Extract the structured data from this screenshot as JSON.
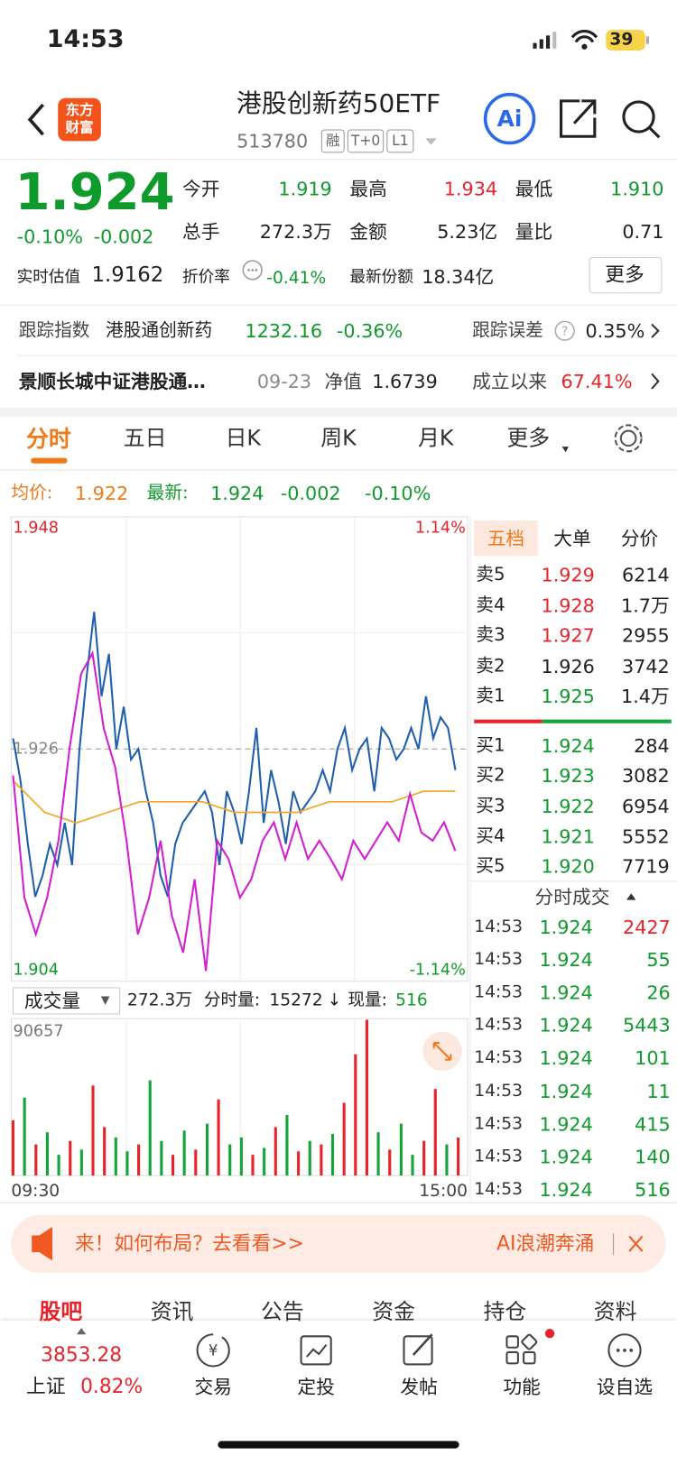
{
  "status_bar": {
    "time": "14:53",
    "battery": "39"
  },
  "header": {
    "logo": [
      "东方",
      "财富"
    ],
    "title": "港股创新药50ETF",
    "code": "513780",
    "tags": [
      "融",
      "T+0",
      "L1"
    ],
    "ai": "Ai"
  },
  "quote": {
    "price": "1.924",
    "change_pct": "-0.10%",
    "change": "-0.002",
    "stats": [
      {
        "label": "今开",
        "value": "1.919"
      },
      {
        "label": "最高",
        "value": "1.934"
      },
      {
        "label": "最低",
        "value": "1.910"
      },
      {
        "label": "总手",
        "value": "272.3万"
      },
      {
        "label": "金额",
        "value": "5.23亿"
      },
      {
        "label": "量比",
        "value": "0.71"
      }
    ],
    "estimate_label": "实时估值",
    "estimate": "1.9162",
    "discount_label": "折价率",
    "discount": "-0.41%",
    "shares_label": "最新份额",
    "shares": "18.34亿",
    "more": "更多"
  },
  "tracking": {
    "label": "跟踪指数",
    "index": "港股通创新药",
    "value": "1232.16",
    "change": "-0.36%",
    "error_label": "跟踪误差",
    "error": "0.35%"
  },
  "fund": {
    "name": "景顺长城中证港股通…",
    "date": "09-23",
    "nav_label": "净值",
    "nav": "1.6739",
    "since_label": "成立以来",
    "since": "67.41%"
  },
  "tabs": [
    "分时",
    "五日",
    "日K",
    "周K",
    "月K",
    "更多"
  ],
  "legend": {
    "avg_label": "均价:",
    "avg": "1.922",
    "latest_label": "最新:",
    "latest": "1.924",
    "change": "-0.002",
    "change_pct": "-0.10%"
  },
  "chart_data": [
    {
      "type": "line",
      "ylim": [
        1.904,
        1.948
      ],
      "yticks": [
        1.904,
        1.926,
        1.948
      ],
      "y2lim": [
        -1.14,
        1.14
      ],
      "y2ticks": [
        {
          "value": -1.14,
          "label": "-1.14%"
        },
        {
          "value": 1.14,
          "label": "1.14%"
        }
      ],
      "grid": true,
      "series": [
        {
          "color": "#1f5fae",
          "values": [
            1.927,
            1.923,
            1.917,
            1.912,
            1.914,
            1.917,
            1.915,
            1.919,
            1.915,
            1.926,
            1.933,
            1.939,
            1.931,
            1.935,
            1.926,
            1.93,
            1.925,
            1.926,
            1.922,
            1.919,
            1.914,
            1.912,
            1.917,
            1.919,
            1.92,
            1.921,
            1.922,
            1.92,
            1.915,
            1.922,
            1.92,
            1.917,
            1.922,
            1.928,
            1.919,
            1.924,
            1.921,
            1.917,
            1.922,
            1.92,
            1.921,
            1.922,
            1.924,
            1.922,
            1.926,
            1.928,
            1.924,
            1.926,
            1.927,
            1.922,
            1.928,
            1.927,
            1.925,
            1.926,
            1.928,
            1.926,
            1.931,
            1.927,
            1.929,
            1.928,
            1.924
          ]
        },
        {
          "color": "#f5a623",
          "values": [
            1.923,
            1.92,
            1.919,
            1.92,
            1.921,
            1.921,
            1.921,
            1.92,
            1.92,
            1.92,
            1.921,
            1.921,
            1.921,
            1.922,
            1.922
          ]
        },
        {
          "color": "#d21fd2",
          "axis": "y2",
          "values": [
            -0.13,
            -0.73,
            -0.91,
            -0.73,
            -0.45,
            0.01,
            0.37,
            0.47,
            0.1,
            -0.09,
            -0.45,
            -0.91,
            -0.73,
            -0.45,
            -0.82,
            -1.0,
            -0.64,
            -1.09,
            -0.45,
            -0.54,
            -0.73,
            -0.64,
            -0.45,
            -0.36,
            -0.54,
            -0.36,
            -0.54,
            -0.45,
            -0.54,
            -0.64,
            -0.45,
            -0.54,
            -0.45,
            -0.36,
            -0.45,
            -0.22,
            -0.41,
            -0.45,
            -0.36,
            -0.5
          ]
        }
      ],
      "time_labels": [
        "09:30",
        "15:00"
      ]
    },
    {
      "type": "bar",
      "selector": "成交量",
      "total": "272.3万",
      "period_label": "分时量:",
      "period": "15272",
      "arrow": "↓",
      "current_label": "现量:",
      "current": "516",
      "ylim": [
        0,
        90657
      ],
      "yticks": [
        90657
      ],
      "values": [
        32000,
        45000,
        18000,
        25000,
        12000,
        20000,
        15000,
        52000,
        28000,
        22000,
        14000,
        18000,
        55000,
        20000,
        12000,
        26000,
        15000,
        30000,
        44000,
        18000,
        22000,
        12000,
        16000,
        28000,
        35000,
        14000,
        20000,
        18000,
        24000,
        42000,
        70000,
        90000,
        25000,
        15000,
        30000,
        12000,
        20000,
        50000,
        18000,
        22000
      ],
      "colors": [
        "#e8242b",
        "#13a538",
        "#e8242b",
        "#13a538",
        "#13a538",
        "#e8242b",
        "#13a538",
        "#e8242b",
        "#e8242b",
        "#13a538",
        "#13a538",
        "#e8242b",
        "#13a538",
        "#13a538",
        "#e8242b",
        "#13a538",
        "#e8242b",
        "#13a538",
        "#e8242b",
        "#13a538",
        "#13a538",
        "#e8242b",
        "#13a538",
        "#e8242b",
        "#13a538",
        "#e8242b",
        "#13a538",
        "#e8242b",
        "#13a538",
        "#e8242b",
        "#e8242b",
        "#e8242b",
        "#13a538",
        "#e8242b",
        "#13a538",
        "#13a538",
        "#e8242b",
        "#e8242b",
        "#13a538",
        "#e8242b"
      ]
    }
  ],
  "order_book": {
    "tabs": [
      "五档",
      "大单",
      "分价"
    ],
    "asks": [
      {
        "label": "卖5",
        "price": "1.929",
        "volume": "6214"
      },
      {
        "label": "卖4",
        "price": "1.928",
        "volume": "1.7万"
      },
      {
        "label": "卖3",
        "price": "1.927",
        "volume": "2955"
      },
      {
        "label": "卖2",
        "price": "1.926",
        "volume": "3742"
      },
      {
        "label": "卖1",
        "price": "1.925",
        "volume": "1.4万"
      }
    ],
    "bids": [
      {
        "label": "买1",
        "price": "1.924",
        "volume": "284"
      },
      {
        "label": "买2",
        "price": "1.923",
        "volume": "3082"
      },
      {
        "label": "买3",
        "price": "1.922",
        "volume": "6954"
      },
      {
        "label": "买4",
        "price": "1.921",
        "volume": "5552"
      },
      {
        "label": "买5",
        "price": "1.920",
        "volume": "7719"
      }
    ],
    "trades_title": "分时成交",
    "trades": [
      {
        "time": "14:53",
        "price": "1.924",
        "volume": "2427"
      },
      {
        "time": "14:53",
        "price": "1.924",
        "volume": "55"
      },
      {
        "time": "14:53",
        "price": "1.924",
        "volume": "26"
      },
      {
        "time": "14:53",
        "price": "1.924",
        "volume": "5443"
      },
      {
        "time": "14:53",
        "price": "1.924",
        "volume": "101"
      },
      {
        "time": "14:53",
        "price": "1.924",
        "volume": "11"
      },
      {
        "time": "14:53",
        "price": "1.924",
        "volume": "415"
      },
      {
        "time": "14:53",
        "price": "1.924",
        "volume": "140"
      },
      {
        "time": "14:53",
        "price": "1.924",
        "volume": "516"
      }
    ]
  },
  "banner": {
    "text": "来！如何布局？去看看>>",
    "right": "AI浪潮奔涌"
  },
  "subtabs": [
    "股吧",
    "资讯",
    "公告",
    "资金",
    "持仓",
    "资料"
  ],
  "bottom_nav": {
    "index_value": "3853.28",
    "index_name": "上证",
    "index_change": "0.82%",
    "items": [
      "交易",
      "定投",
      "发帖",
      "功能",
      "设自选"
    ]
  }
}
